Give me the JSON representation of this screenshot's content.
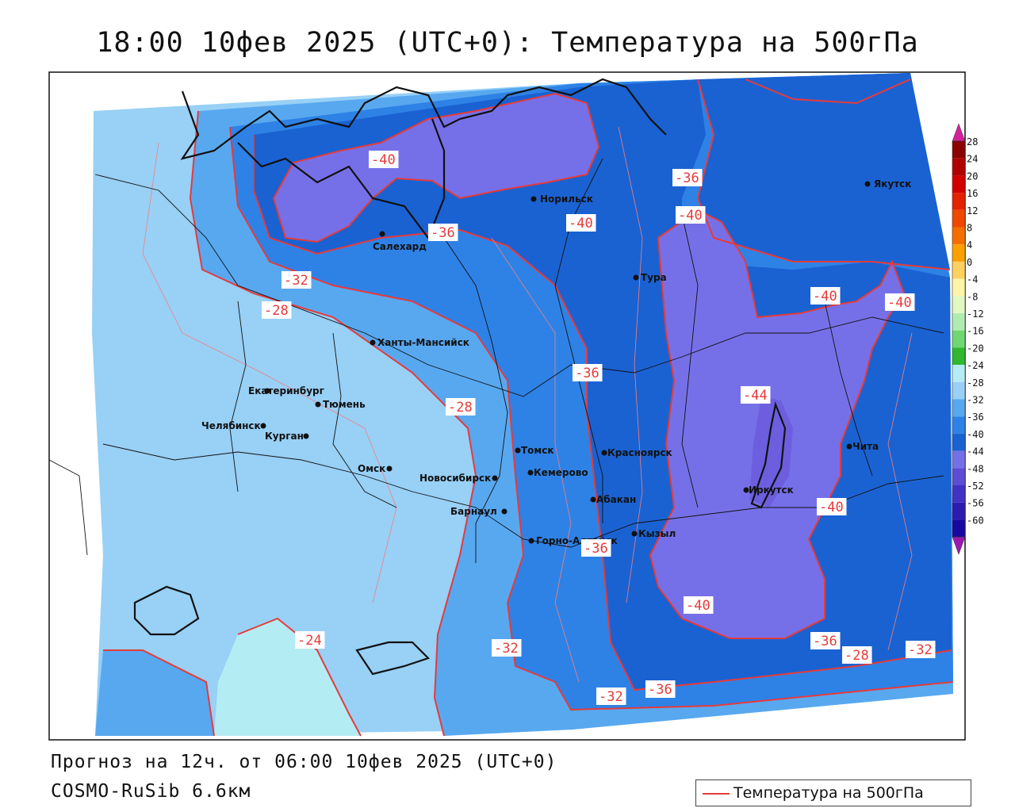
{
  "title": "18:00 10фев 2025 (UTC+0): Температура на 500гПа",
  "footer": {
    "forecast": "Прогноз на 12ч. от 06:00 10фев 2025 (UTC+0)",
    "model": "COSMO-RuSib 6.6км"
  },
  "legend": {
    "label": "Температура на 500гПа",
    "line_color": "#e53b3b"
  },
  "colorbar": {
    "labels": [
      "28",
      "24",
      "20",
      "16",
      "12",
      "8",
      "4",
      "0",
      "-4",
      "-8",
      "-12",
      "-16",
      "-20",
      "-24",
      "-28",
      "-32",
      "-36",
      "-40",
      "-44",
      "-48",
      "-52",
      "-56",
      "-60"
    ],
    "colors": [
      "#8b0000",
      "#b20000",
      "#d40000",
      "#e52200",
      "#f04800",
      "#f76e00",
      "#fba000",
      "#fdd060",
      "#fff4a8",
      "#e2f8c0",
      "#b0ecb0",
      "#70d870",
      "#30b830",
      "#b4ecf4",
      "#98d0f6",
      "#58a8f0",
      "#2e82e6",
      "#1a62d2",
      "#7670e8",
      "#5c4cd6",
      "#4232c4",
      "#2a1cb2",
      "#1608a0"
    ],
    "top_arrow": "#d4209c",
    "bottom_arrow": "#9a1ab0"
  },
  "cities": [
    {
      "name": "Норильск"
    },
    {
      "name": "Салехард"
    },
    {
      "name": "Якутск"
    },
    {
      "name": "Тура"
    },
    {
      "name": "Ханты-Мансийск"
    },
    {
      "name": "Екатеринбург"
    },
    {
      "name": "Тюмень"
    },
    {
      "name": "Челябинск"
    },
    {
      "name": "Курган"
    },
    {
      "name": "Омск"
    },
    {
      "name": "Новосибирск"
    },
    {
      "name": "Томск"
    },
    {
      "name": "Кемерово"
    },
    {
      "name": "Красноярск"
    },
    {
      "name": "Абакан"
    },
    {
      "name": "Барнаул"
    },
    {
      "name": "Горно-Алтайск"
    },
    {
      "name": "Кызыл"
    },
    {
      "name": "Иркутск"
    },
    {
      "name": "Чита"
    }
  ],
  "isotherm_labels": [
    "-40",
    "-36",
    "-40",
    "-36",
    "-32",
    "-28",
    "-40",
    "-36",
    "-40",
    "-40",
    "-44",
    "-28",
    "-40",
    "-36",
    "-40",
    "-24",
    "-32",
    "-36",
    "-32",
    "-28",
    "-32",
    "-36"
  ]
}
